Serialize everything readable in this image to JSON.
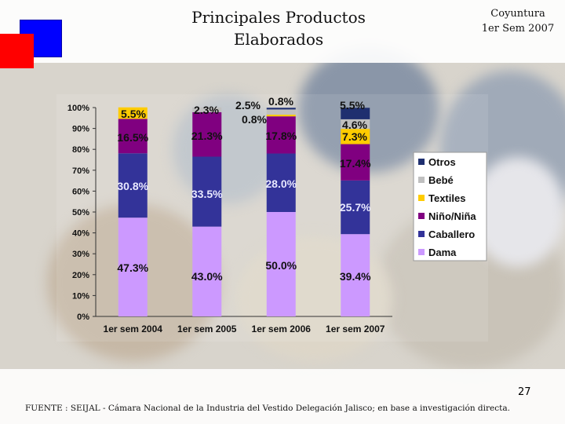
{
  "header": {
    "title_line1": "Principales Productos",
    "title_line2": "Elaborados",
    "period_line1": "Coyuntura",
    "period_line2": "1er Sem 2007"
  },
  "footer": {
    "page_number": "27",
    "source": "FUENTE :  SEIJAL - Cámara Nacional de la Industria del Vestido Delegación Jalisco;  en base a investigación directa."
  },
  "colors": {
    "Dama": "#cc99ff",
    "Caballero": "#333399",
    "Niño/Niña": "#800080",
    "Textiles": "#ffcc00",
    "Bebé": "#c0c0c0",
    "Otros": "#1f2f6f"
  },
  "chart_data": {
    "type": "bar",
    "stacked": true,
    "percent": true,
    "categories": [
      "1er sem 2004",
      "1er sem 2005",
      "1er sem 2006",
      "1er sem 2007"
    ],
    "yticks": [
      "0%",
      "10%",
      "20%",
      "30%",
      "40%",
      "50%",
      "60%",
      "70%",
      "80%",
      "90%",
      "100%"
    ],
    "ylim": [
      0,
      100
    ],
    "legend_position": "right",
    "series": [
      {
        "name": "Dama",
        "values": [
          47.3,
          43.0,
          50.0,
          39.4
        ],
        "labels": [
          "47.3%",
          "43.0%",
          "50.0%",
          "39.4%"
        ]
      },
      {
        "name": "Caballero",
        "values": [
          30.8,
          33.5,
          28.0,
          25.7
        ],
        "labels": [
          "30.8%",
          "33.5%",
          "28.0%",
          "25.7%"
        ]
      },
      {
        "name": "Niño/Niña",
        "values": [
          16.5,
          21.3,
          17.8,
          17.4
        ],
        "labels": [
          "16.5%",
          "21.3%",
          "17.8%",
          "17.4%"
        ]
      },
      {
        "name": "Textiles",
        "values": [
          5.5,
          0,
          0.8,
          7.3
        ],
        "labels": [
          "5.5%",
          "",
          "0.8%",
          "7.3%"
        ]
      },
      {
        "name": "Bebé",
        "values": [
          0,
          2.3,
          2.5,
          4.6
        ],
        "labels": [
          "",
          "2.3%",
          "2.5%",
          "4.6%"
        ]
      },
      {
        "name": "Otros",
        "values": [
          0,
          0,
          0.8,
          5.5
        ],
        "labels": [
          "",
          "",
          "0.8%",
          "5.5%"
        ]
      }
    ],
    "legend_order": [
      "Otros",
      "Bebé",
      "Textiles",
      "Niño/Niña",
      "Caballero",
      "Dama"
    ]
  }
}
